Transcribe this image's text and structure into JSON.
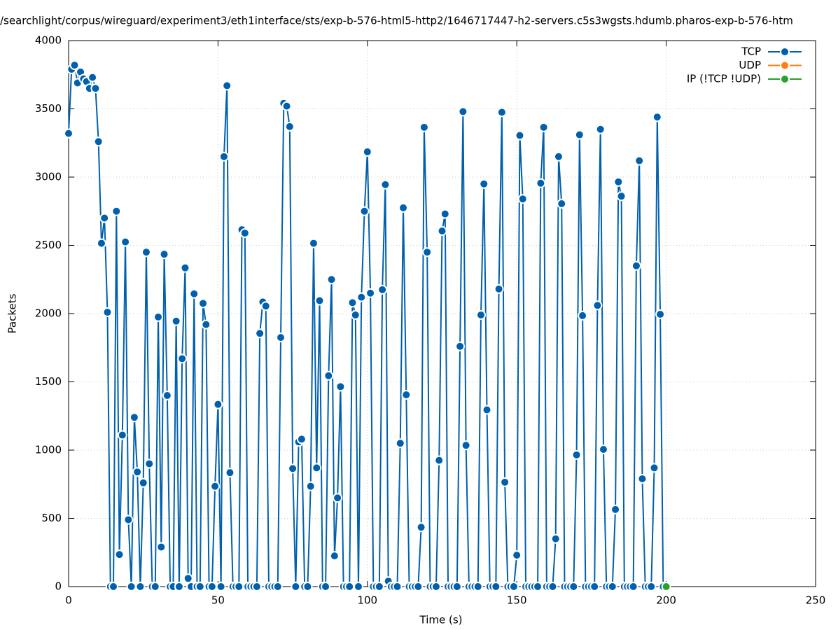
{
  "chart_data": {
    "type": "line",
    "title": "/searchlight/corpus/wireguard/experiment3/eth1interface/sts/exp-b-576-html5-http2/1646717447-h2-servers.c5s3wgsts.hdumb.pharos-exp-b-576-htm",
    "xlabel": "Time (s)",
    "ylabel": "Packets",
    "xlim": [
      0,
      250
    ],
    "xticks": [
      0,
      50,
      100,
      150,
      200,
      250
    ],
    "ylim": [
      0,
      4000
    ],
    "yticks": [
      0,
      500,
      1000,
      1500,
      2000,
      2500,
      3000,
      3500,
      4000
    ],
    "grid": true,
    "legend": "top-right",
    "series": [
      {
        "name": "TCP",
        "color": "#0060ad",
        "x": [
          0,
          1,
          2,
          3,
          4,
          5,
          6,
          7,
          8,
          9,
          10,
          11,
          12,
          13,
          14,
          15,
          16,
          17,
          18,
          19,
          20,
          21,
          22,
          23,
          24,
          25,
          26,
          27,
          28,
          29,
          30,
          31,
          32,
          33,
          34,
          35,
          36,
          37,
          38,
          39,
          40,
          41,
          42,
          43,
          44,
          45,
          46,
          47,
          48,
          49,
          50,
          51,
          52,
          53,
          54,
          55,
          56,
          57,
          58,
          59,
          60,
          61,
          62,
          63,
          64,
          65,
          66,
          67,
          68,
          69,
          70,
          71,
          72,
          73,
          74,
          75,
          76,
          77,
          78,
          79,
          80,
          81,
          82,
          83,
          84,
          85,
          86,
          87,
          88,
          89,
          90,
          91,
          92,
          93,
          94,
          95,
          96,
          97,
          98,
          99,
          100,
          101,
          102,
          103,
          104,
          105,
          106,
          107,
          108,
          109,
          110,
          111,
          112,
          113,
          114,
          115,
          116,
          117,
          118,
          119,
          120,
          121,
          122,
          123,
          124,
          125,
          126,
          127,
          128,
          129,
          130,
          131,
          132,
          133,
          134,
          135,
          136,
          137,
          138,
          139,
          140,
          141,
          142,
          143,
          144,
          145,
          146,
          147,
          148,
          149,
          150,
          151,
          152,
          153,
          154,
          155,
          156,
          157,
          158,
          159,
          160,
          161,
          162,
          163,
          164,
          165,
          166,
          167,
          168,
          169,
          170,
          171,
          172,
          173,
          174,
          175,
          176,
          177,
          178,
          179,
          180,
          181,
          182,
          183,
          184,
          185,
          186,
          187,
          188,
          189,
          190,
          191,
          192,
          193,
          194,
          195,
          196,
          197,
          198,
          199
        ],
        "values": [
          3320,
          3790,
          3820,
          3690,
          3770,
          3720,
          3700,
          3650,
          3730,
          3650,
          3260,
          2515,
          2700,
          2010,
          0,
          0,
          2750,
          235,
          1110,
          2525,
          490,
          0,
          1240,
          840,
          0,
          760,
          2450,
          900,
          0,
          0,
          1975,
          290,
          2435,
          1400,
          0,
          0,
          1945,
          0,
          1670,
          2335,
          60,
          0,
          2145,
          0,
          0,
          2075,
          1920,
          0,
          0,
          735,
          1335,
          0,
          3150,
          3670,
          835,
          0,
          0,
          0,
          2615,
          2590,
          0,
          0,
          0,
          0,
          1855,
          2085,
          2055,
          0,
          0,
          0,
          0,
          1825,
          3540,
          3520,
          3370,
          865,
          0,
          1060,
          1080,
          0,
          0,
          735,
          2515,
          870,
          2095,
          0,
          0,
          1545,
          2250,
          225,
          650,
          1465,
          0,
          0,
          0,
          2080,
          1990,
          0,
          2120,
          2750,
          3185,
          2150,
          0,
          0,
          0,
          2175,
          2945,
          40,
          0,
          0,
          0,
          1050,
          2775,
          1405,
          0,
          0,
          0,
          0,
          435,
          3365,
          2450,
          0,
          0,
          0,
          925,
          2605,
          2730,
          0,
          0,
          0,
          0,
          1760,
          3480,
          1035,
          0,
          0,
          0,
          0,
          1990,
          2950,
          1295,
          0,
          0,
          0,
          2180,
          3475,
          765,
          0,
          0,
          0,
          230,
          3305,
          2840,
          0,
          0,
          0,
          0,
          0,
          2955,
          3365,
          0,
          0,
          0,
          350,
          3150,
          2805,
          0,
          0,
          0,
          0,
          965,
          3310,
          1985,
          0,
          0,
          0,
          0,
          2060,
          3350,
          1005,
          0,
          0,
          0,
          565,
          2965,
          2860,
          0,
          0,
          0,
          0,
          2350,
          3120,
          790,
          0,
          0,
          0,
          870,
          3440,
          1995,
          0
        ]
      },
      {
        "name": "UDP",
        "color": "#ff7f0e",
        "x": [],
        "values": []
      },
      {
        "name": "IP (!TCP  !UDP)",
        "color": "#2ca02c",
        "x": [
          200
        ],
        "values": [
          0
        ]
      }
    ]
  }
}
